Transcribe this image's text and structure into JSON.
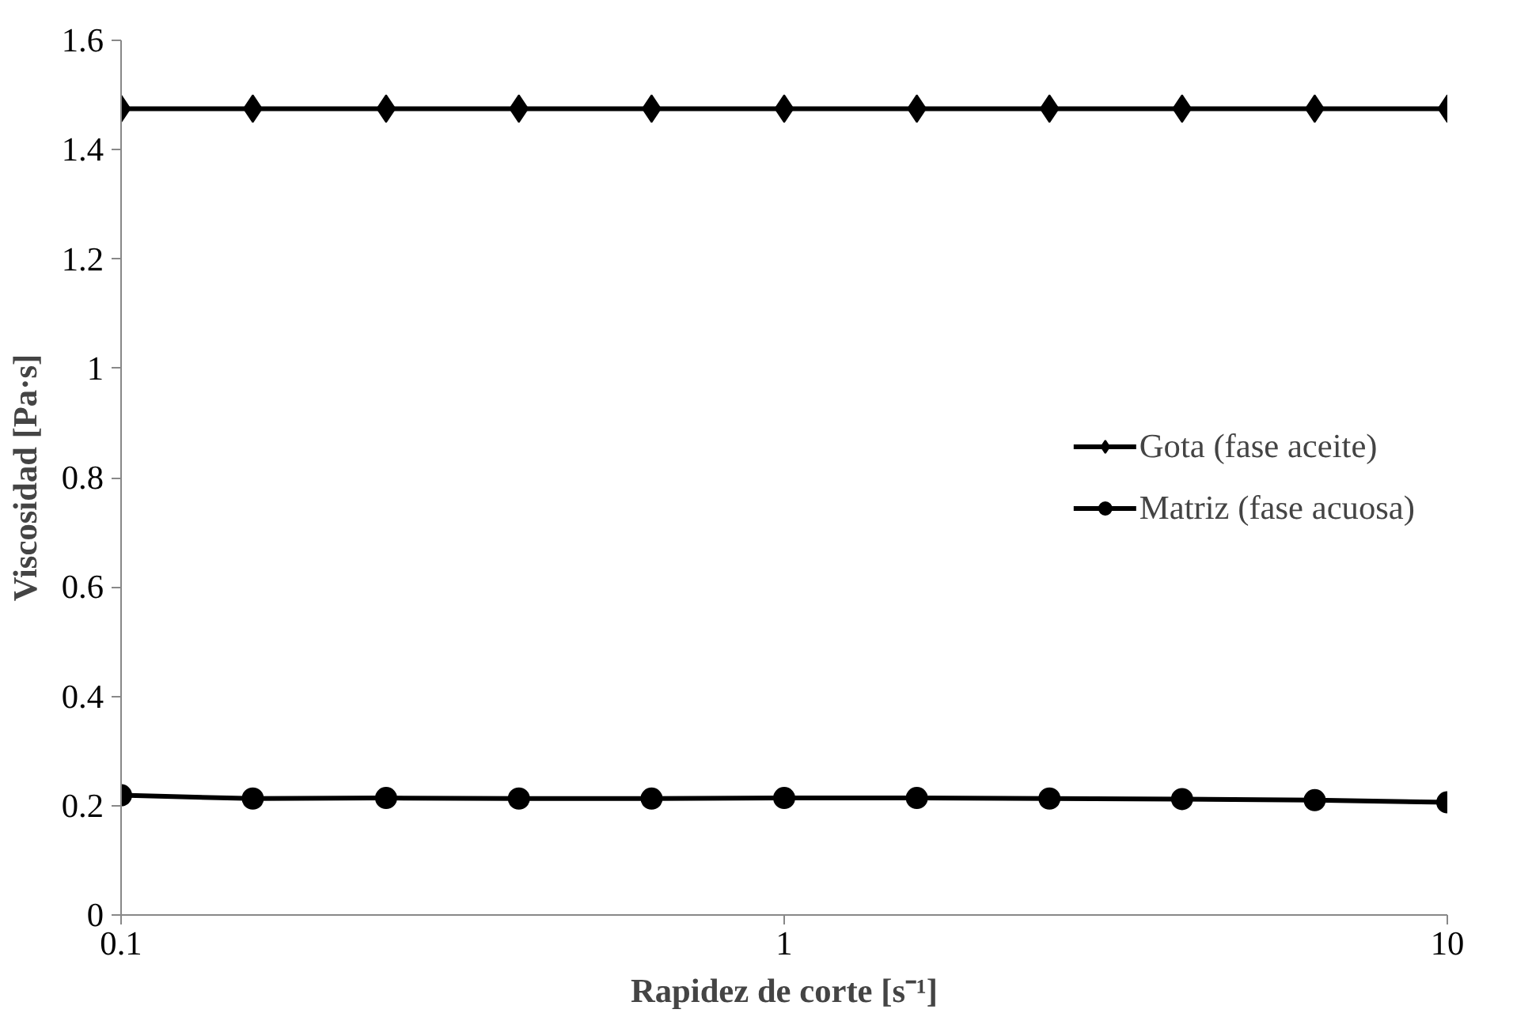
{
  "chart_data": {
    "type": "line",
    "xlabel": "Rapidez de corte [s⁻¹]",
    "ylabel": "Viscosidad [Pa·s]",
    "log": "x",
    "xlim": [
      0.1,
      10
    ],
    "xticks": [
      0.1,
      1,
      10
    ],
    "ylim": [
      0,
      1.6
    ],
    "yticks": [
      0,
      0.2,
      0.4,
      0.6,
      0.8,
      1,
      1.2,
      1.4,
      1.6
    ],
    "grid": false,
    "legend": "right",
    "x": [
      0.1,
      0.158,
      0.251,
      0.398,
      0.631,
      1,
      1.585,
      2.512,
      3.981,
      6.31,
      10
    ],
    "series": [
      {
        "name": "Gota (fase aceite)",
        "color": "#000000",
        "marker": "diamond",
        "values": [
          1.475,
          1.475,
          1.475,
          1.475,
          1.475,
          1.475,
          1.475,
          1.475,
          1.475,
          1.475,
          1.475
        ]
      },
      {
        "name": "Matriz (fase acuosa)",
        "color": "#000000",
        "marker": "circle",
        "values": [
          0.219,
          0.213,
          0.214,
          0.213,
          0.213,
          0.214,
          0.214,
          0.213,
          0.212,
          0.21,
          0.206
        ]
      }
    ]
  }
}
